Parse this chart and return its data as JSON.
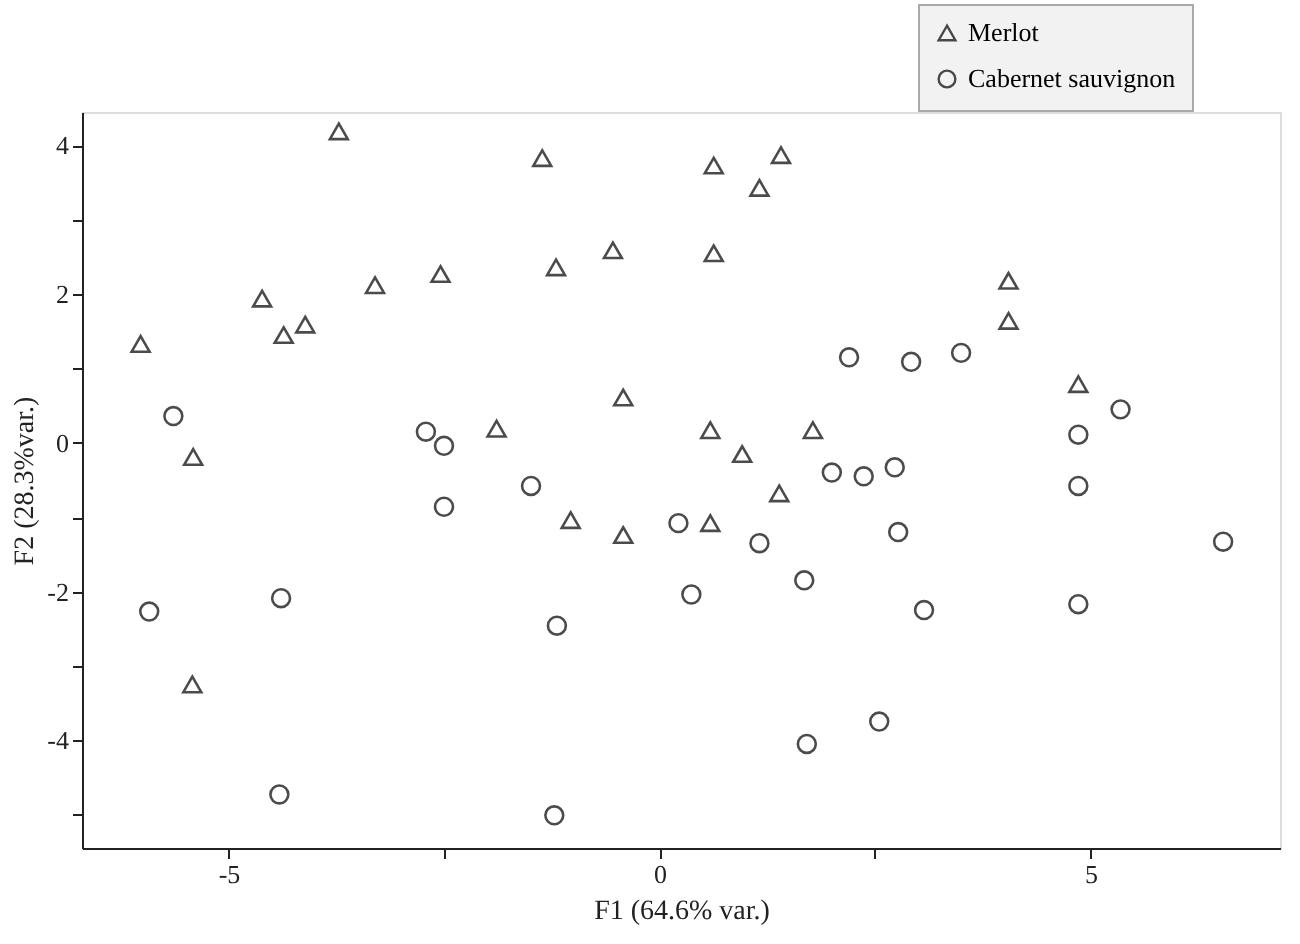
{
  "chart_data": {
    "type": "scatter",
    "xlabel": "F1 (64.6% var.)",
    "ylabel": "F2 (28.3%var.)",
    "xlim": [
      -6.7,
      7.2
    ],
    "ylim": [
      -5.45,
      4.45
    ],
    "xticks": [
      -5,
      {
        "value": -2.5,
        "label": null
      },
      0,
      {
        "value": 2.5,
        "label": null
      },
      5
    ],
    "yticks": [
      {
        "value": -5,
        "label": null
      },
      -4,
      {
        "value": -3,
        "label": null
      },
      -2,
      {
        "value": -1,
        "label": null
      },
      0,
      {
        "value": 1,
        "label": null
      },
      2,
      {
        "value": 3,
        "label": null
      },
      4
    ],
    "grid": false,
    "legend": "top right",
    "series": [
      {
        "name": "Merlot",
        "color": "#000000",
        "marker": "triangle",
        "x": [
          -3.72,
          -1.36,
          -6.02,
          -4.61,
          -4.36,
          -4.11,
          -3.3,
          -2.54,
          -1.2,
          -0.54,
          -0.42,
          -1.89,
          -5.41,
          0.63,
          1.41,
          1.16,
          0.63,
          4.05,
          4.05,
          4.86,
          0.59,
          1.78,
          0.96,
          1.39,
          -1.03,
          -0.42,
          -5.42,
          0.59
        ],
        "values": [
          4.19,
          3.83,
          1.33,
          1.94,
          1.45,
          1.59,
          2.12,
          2.27,
          2.36,
          2.59,
          0.61,
          0.19,
          -0.19,
          3.73,
          3.87,
          3.43,
          2.55,
          2.18,
          1.64,
          0.79,
          0.17,
          0.17,
          -0.15,
          -0.68,
          -1.04,
          -1.24,
          -3.25,
          -1.08
        ]
      },
      {
        "name": "Cabernet sauvignon",
        "color": "#000000",
        "marker": "circle",
        "x": [
          -5.64,
          -2.71,
          -2.5,
          -1.49,
          -2.5,
          2.2,
          2.92,
          3.5,
          5.35,
          4.86,
          4.86,
          2.0,
          2.37,
          2.73,
          -5.92,
          -4.39,
          -1.19,
          -4.41,
          -1.22,
          0.22,
          1.16,
          0.37,
          1.68,
          2.77,
          3.07,
          4.86,
          6.54,
          2.55,
          1.71
        ],
        "values": [
          0.36,
          0.15,
          -0.04,
          -0.58,
          -0.86,
          1.15,
          1.09,
          1.21,
          0.45,
          0.11,
          -0.58,
          -0.4,
          -0.45,
          -0.33,
          -2.27,
          -2.09,
          -2.46,
          -4.73,
          -5.01,
          -1.08,
          -1.35,
          -2.04,
          -1.85,
          -1.2,
          -2.25,
          -2.17,
          -1.33,
          -3.75,
          -4.05
        ]
      }
    ]
  }
}
